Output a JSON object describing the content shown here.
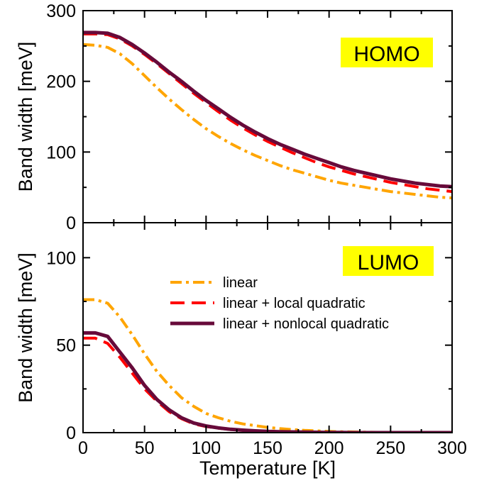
{
  "chart_data": {
    "type": "line",
    "xlabel": "Temperature [K]",
    "xlim": [
      0,
      300
    ],
    "xticks": [
      0,
      50,
      100,
      150,
      200,
      250,
      300
    ],
    "grid": false,
    "colors": {
      "linear": "#ffa500",
      "linear_local": "#ff0000",
      "linear_nonlocal": "#670a3a",
      "tag_background": "#ffff00"
    },
    "legend": {
      "placement": "bottom-panel center-right",
      "entries": [
        "linear",
        "linear + local quadratic",
        "linear + nonlocal quadratic"
      ]
    },
    "panels": [
      {
        "tag": "HOMO",
        "ylabel": "Band width [meV]",
        "ylim": [
          0,
          300
        ],
        "yticks": [
          0,
          100,
          200,
          300
        ],
        "x": [
          0,
          10,
          20,
          30,
          40,
          50,
          60,
          70,
          80,
          90,
          100,
          110,
          120,
          130,
          140,
          150,
          160,
          170,
          180,
          190,
          200,
          210,
          220,
          230,
          240,
          250,
          260,
          270,
          280,
          290,
          300
        ],
        "series": [
          {
            "name": "linear",
            "style": "dash-dot",
            "values": [
              252,
              251,
              248,
              239,
              225,
              208,
              191,
              175,
              160,
              146,
              133,
              122,
              112,
              103,
              95,
              88,
              81,
              75,
              70,
              65,
              60,
              56,
              53,
              50,
              47,
              44,
              42,
              40,
              38,
              36,
              35
            ]
          },
          {
            "name": "linear + local quadratic",
            "style": "dashed",
            "values": [
              267,
              267,
              266,
              260,
              250,
              238,
              225,
              211,
              197,
              183,
              170,
              157,
              145,
              134,
              124,
              115,
              107,
              99,
              92,
              85,
              79,
              74,
              69,
              65,
              61,
              57,
              54,
              51,
              48,
              46,
              44
            ]
          },
          {
            "name": "linear + nonlocal quadratic",
            "style": "solid",
            "values": [
              269,
              269,
              268,
              262,
              252,
              240,
              227,
              213,
              200,
              186,
              173,
              161,
              149,
              138,
              128,
              119,
              111,
              104,
              97,
              91,
              85,
              79,
              74,
              70,
              66,
              62,
              59,
              56,
              54,
              52,
              51
            ]
          }
        ]
      },
      {
        "tag": "LUMO",
        "ylabel": "Band width [meV]",
        "ylim": [
          0,
          120
        ],
        "yticks": [
          0,
          50,
          100
        ],
        "x": [
          0,
          10,
          20,
          30,
          40,
          50,
          60,
          70,
          80,
          90,
          100,
          110,
          120,
          130,
          140,
          150,
          160,
          170,
          180,
          190,
          200,
          210,
          220,
          230,
          240,
          250,
          260,
          270,
          280,
          290,
          300
        ],
        "series": [
          {
            "name": "linear",
            "style": "dash-dot",
            "values": [
              76,
              76,
              74,
              66,
              56,
              45,
              35,
              27,
              20,
              15,
              11,
              8.5,
              6.5,
              5,
              4,
              3,
              2.3,
              1.8,
              1.3,
              1,
              0.7,
              0.5,
              0.4,
              0.3,
              0.2,
              0.1,
              0.1,
              0,
              0,
              0,
              0
            ]
          },
          {
            "name": "linear + local quadratic",
            "style": "dashed",
            "values": [
              54,
              54,
              51,
              43,
              34,
              25,
              18,
              12,
              8,
              5,
              3.5,
              2.5,
              1.8,
              1.3,
              1,
              0.7,
              0.5,
              0.4,
              0.3,
              0.2,
              0.1,
              0.1,
              0,
              0,
              0,
              0,
              0,
              0,
              0,
              0,
              0
            ]
          },
          {
            "name": "linear + nonlocal quadratic",
            "style": "solid",
            "values": [
              57,
              57,
              55,
              46,
              37,
              27,
              19,
              13,
              8.5,
              5.5,
              3.8,
              2.7,
              1.9,
              1.4,
              1,
              0.7,
              0.5,
              0.4,
              0.3,
              0.2,
              0.1,
              0.1,
              0,
              0,
              0,
              0,
              0,
              0,
              0,
              0,
              0
            ]
          }
        ]
      }
    ]
  }
}
